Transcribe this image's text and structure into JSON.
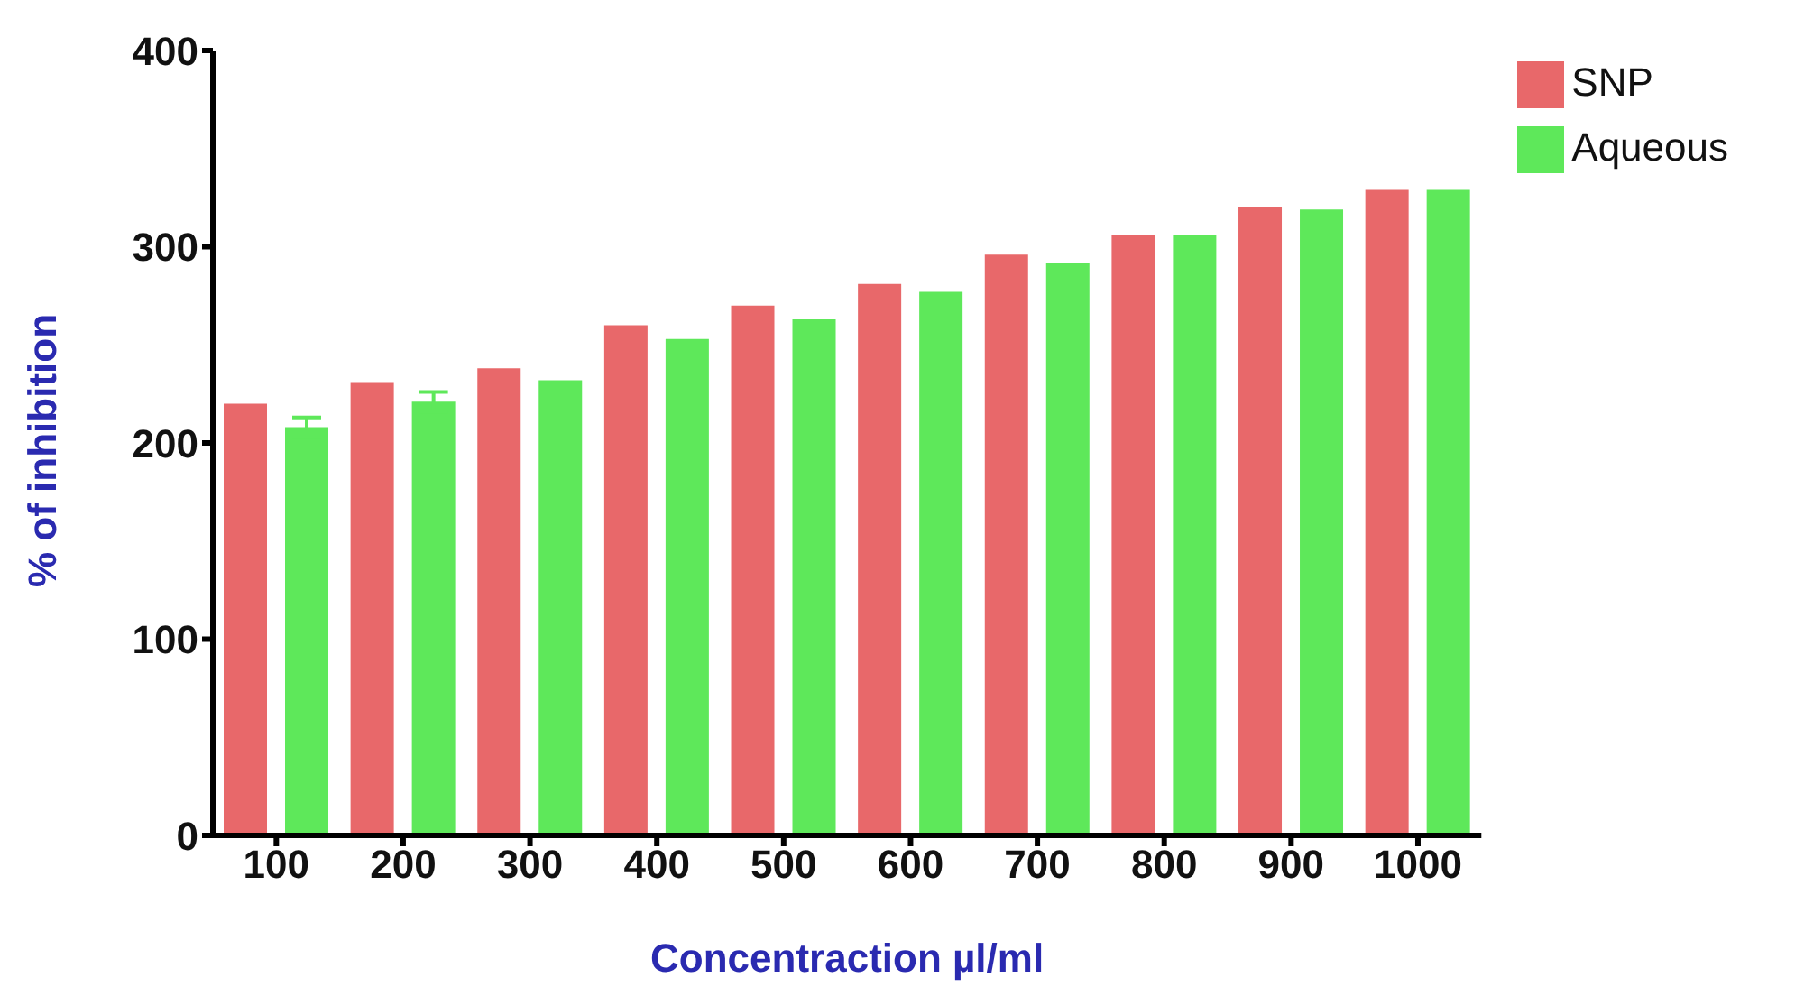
{
  "chart_data": {
    "type": "bar",
    "xlabel": "Concentraction µl/ml",
    "ylabel": "% of inhibition",
    "categories": [
      "100",
      "200",
      "300",
      "400",
      "500",
      "600",
      "700",
      "800",
      "900",
      "1000"
    ],
    "series": [
      {
        "name": "SNP",
        "color": "#e8686a",
        "values": [
          220,
          231,
          238,
          260,
          270,
          281,
          296,
          306,
          320,
          329
        ]
      },
      {
        "name": "Aqueous",
        "color": "#5ee85a",
        "values": [
          208,
          221,
          232,
          253,
          263,
          277,
          292,
          306,
          319,
          329
        ],
        "errors": [
          5,
          5,
          null,
          null,
          null,
          null,
          null,
          null,
          null,
          null
        ]
      }
    ],
    "ylim": [
      0,
      400
    ],
    "yticks": [
      0,
      100,
      200,
      300,
      400
    ],
    "grid": false,
    "legend": "top right"
  }
}
